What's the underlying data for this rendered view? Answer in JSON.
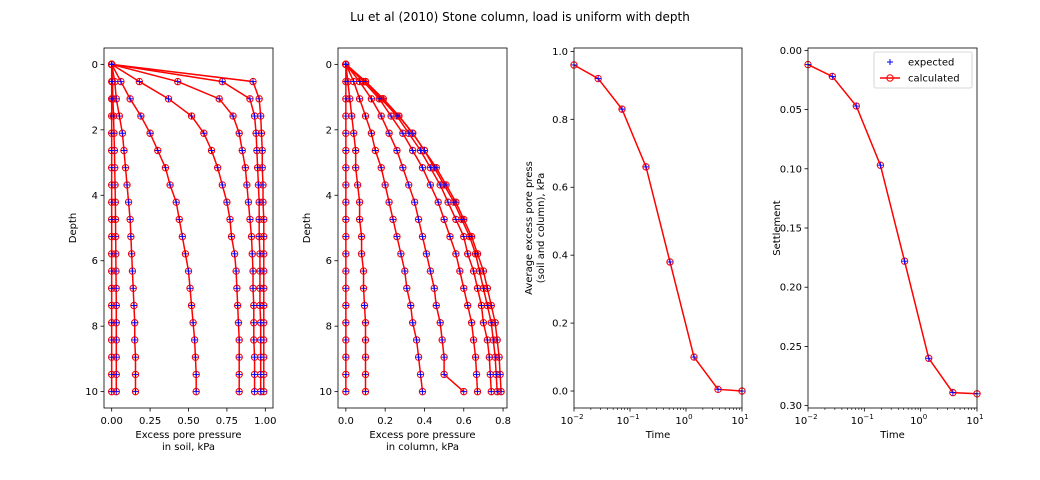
{
  "title": "Lu et al (2010) Stone column, load is uniform with depth",
  "legend": {
    "placement": "upper-right",
    "entries": [
      {
        "label": "expected",
        "marker": "plus",
        "color": "#0000ff"
      },
      {
        "label": "calculated",
        "marker": "circle-line",
        "color": "#ff0000"
      }
    ]
  },
  "chart_data": [
    {
      "type": "line",
      "xlabel": "Excess pore pressure\nin soil, kPa",
      "ylabel": "Depth",
      "xlim": [
        -0.05,
        1.05
      ],
      "ylim": [
        10.5,
        -0.5
      ],
      "xticks": [
        0,
        0.25,
        0.5,
        0.75,
        1.0
      ],
      "xtick_labels": [
        "0.00",
        "0.25",
        "0.50",
        "0.75",
        "1.00"
      ],
      "yticks": [
        0,
        2,
        4,
        6,
        8,
        10
      ],
      "ytick_labels": [
        "0",
        "2",
        "4",
        "6",
        "8",
        "10"
      ],
      "depths": [
        0,
        0.526,
        1.053,
        1.579,
        2.105,
        2.632,
        3.158,
        3.684,
        4.211,
        4.737,
        5.263,
        5.789,
        6.316,
        6.842,
        7.368,
        7.895,
        8.421,
        8.947,
        9.474,
        10.0
      ],
      "profiles": [
        [
          0,
          0.92,
          0.96,
          0.97,
          0.975,
          0.98,
          0.98,
          0.985,
          0.985,
          0.99,
          0.99,
          0.99,
          0.99,
          0.99,
          0.99,
          0.99,
          0.99,
          0.99,
          0.99,
          0.99
        ],
        [
          0,
          0.72,
          0.9,
          0.93,
          0.94,
          0.945,
          0.95,
          0.955,
          0.96,
          0.96,
          0.96,
          0.965,
          0.965,
          0.965,
          0.965,
          0.97,
          0.97,
          0.97,
          0.97,
          0.97
        ],
        [
          0,
          0.43,
          0.7,
          0.79,
          0.83,
          0.85,
          0.87,
          0.88,
          0.89,
          0.9,
          0.91,
          0.915,
          0.92,
          0.92,
          0.925,
          0.925,
          0.925,
          0.93,
          0.93,
          0.93
        ],
        [
          0,
          0.18,
          0.37,
          0.52,
          0.6,
          0.65,
          0.69,
          0.72,
          0.75,
          0.77,
          0.78,
          0.8,
          0.81,
          0.815,
          0.82,
          0.825,
          0.83,
          0.83,
          0.83,
          0.83
        ],
        [
          0,
          0.06,
          0.12,
          0.19,
          0.25,
          0.3,
          0.35,
          0.38,
          0.42,
          0.44,
          0.46,
          0.48,
          0.5,
          0.51,
          0.52,
          0.53,
          0.54,
          0.545,
          0.55,
          0.55
        ],
        [
          0,
          0.02,
          0.03,
          0.05,
          0.07,
          0.08,
          0.09,
          0.1,
          0.11,
          0.12,
          0.125,
          0.13,
          0.135,
          0.14,
          0.145,
          0.15,
          0.15,
          0.155,
          0.155,
          0.155
        ],
        [
          0,
          0.005,
          0.008,
          0.012,
          0.015,
          0.018,
          0.02,
          0.022,
          0.024,
          0.025,
          0.026,
          0.027,
          0.028,
          0.029,
          0.03,
          0.03,
          0.03,
          0.03,
          0.03,
          0.03
        ],
        [
          0,
          0,
          0,
          0,
          0,
          0,
          0,
          0,
          0,
          0,
          0,
          0,
          0,
          0,
          0,
          0,
          0,
          0,
          0,
          0
        ]
      ]
    },
    {
      "type": "line",
      "xlabel": "Excess pore pressure\nin column, kPa",
      "ylabel": "Depth",
      "xlim": [
        -0.04,
        0.82
      ],
      "ylim": [
        10.5,
        -0.5
      ],
      "xticks": [
        0,
        0.2,
        0.4,
        0.6,
        0.8
      ],
      "xtick_labels": [
        "0.0",
        "0.2",
        "0.4",
        "0.6",
        "0.8"
      ],
      "yticks": [
        0,
        2,
        4,
        6,
        8,
        10
      ],
      "ytick_labels": [
        "0",
        "2",
        "4",
        "6",
        "8",
        "10"
      ],
      "depths": [
        0,
        0.526,
        1.053,
        1.579,
        2.105,
        2.632,
        3.158,
        3.684,
        4.211,
        4.737,
        5.263,
        5.789,
        6.316,
        6.842,
        7.368,
        7.895,
        8.421,
        8.947,
        9.474,
        10.0
      ],
      "profiles": [
        [
          0,
          0.1,
          0.19,
          0.27,
          0.34,
          0.4,
          0.46,
          0.51,
          0.56,
          0.6,
          0.64,
          0.67,
          0.7,
          0.72,
          0.74,
          0.76,
          0.77,
          0.78,
          0.785,
          0.79
        ],
        [
          0,
          0.1,
          0.19,
          0.27,
          0.34,
          0.4,
          0.45,
          0.5,
          0.55,
          0.59,
          0.63,
          0.66,
          0.68,
          0.7,
          0.72,
          0.74,
          0.75,
          0.76,
          0.765,
          0.77
        ],
        [
          0,
          0.1,
          0.18,
          0.26,
          0.32,
          0.38,
          0.43,
          0.48,
          0.52,
          0.56,
          0.6,
          0.62,
          0.65,
          0.67,
          0.69,
          0.7,
          0.72,
          0.73,
          0.735,
          0.74
        ],
        [
          0,
          0.09,
          0.17,
          0.23,
          0.29,
          0.34,
          0.39,
          0.43,
          0.47,
          0.5,
          0.53,
          0.56,
          0.58,
          0.6,
          0.62,
          0.64,
          0.65,
          0.66,
          0.665,
          0.67
        ],
        [
          0,
          0.07,
          0.13,
          0.18,
          0.22,
          0.26,
          0.29,
          0.32,
          0.35,
          0.37,
          0.39,
          0.41,
          0.43,
          0.45,
          0.46,
          0.48,
          0.49,
          0.5,
          0.5,
          0.6
        ],
        [
          0,
          0.04,
          0.07,
          0.1,
          0.13,
          0.15,
          0.18,
          0.2,
          0.22,
          0.24,
          0.26,
          0.28,
          0.3,
          0.31,
          0.33,
          0.34,
          0.36,
          0.37,
          0.38,
          0.39
        ],
        [
          0,
          0.01,
          0.02,
          0.03,
          0.04,
          0.05,
          0.05,
          0.06,
          0.07,
          0.07,
          0.08,
          0.08,
          0.09,
          0.09,
          0.095,
          0.1,
          0.1,
          0.1,
          0.1,
          0.1
        ],
        [
          0,
          0,
          0,
          0,
          0,
          0,
          0,
          0,
          0,
          0,
          0,
          0,
          0,
          0,
          0,
          0,
          0,
          0,
          0,
          0
        ]
      ]
    },
    {
      "type": "line",
      "xscale": "log",
      "xlabel": "Time",
      "ylabel": "Average excess pore press\n(soil and column), kPa",
      "xlim": [
        0.01,
        10
      ],
      "ylim": [
        -0.05,
        1.01
      ],
      "xticks": [
        0.01,
        0.1,
        1,
        10
      ],
      "xtick_labels": [
        "10",
        "10",
        "10",
        "10"
      ],
      "xtick_exponents": [
        "−2",
        "−1",
        "0",
        "1"
      ],
      "yticks": [
        0,
        0.2,
        0.4,
        0.6,
        0.8,
        1.0
      ],
      "ytick_labels": [
        "0.0",
        "0.2",
        "0.4",
        "0.6",
        "0.8",
        "1.0"
      ],
      "x": [
        0.01,
        0.027,
        0.072,
        0.193,
        0.518,
        1.39,
        3.73,
        10
      ],
      "y": [
        0.96,
        0.92,
        0.83,
        0.66,
        0.38,
        0.1,
        0.005,
        0.0
      ]
    },
    {
      "type": "line",
      "xscale": "log",
      "xlabel": "Time",
      "ylabel": "Settlement",
      "xlim": [
        0.01,
        10
      ],
      "ylim": [
        0.302,
        -0.002
      ],
      "xticks": [
        0.01,
        0.1,
        1,
        10
      ],
      "xtick_labels": [
        "10",
        "10",
        "10",
        "10"
      ],
      "xtick_exponents": [
        "−2",
        "−1",
        "0",
        "1"
      ],
      "yticks": [
        0,
        0.05,
        0.1,
        0.15,
        0.2,
        0.25,
        0.3
      ],
      "ytick_labels": [
        "0.00",
        "0.05",
        "0.10",
        "0.15",
        "0.20",
        "0.25",
        "0.30"
      ],
      "x": [
        0.01,
        0.027,
        0.072,
        0.193,
        0.518,
        1.39,
        3.73,
        10
      ],
      "y": [
        0.012,
        0.022,
        0.047,
        0.097,
        0.178,
        0.26,
        0.289,
        0.29
      ]
    }
  ]
}
